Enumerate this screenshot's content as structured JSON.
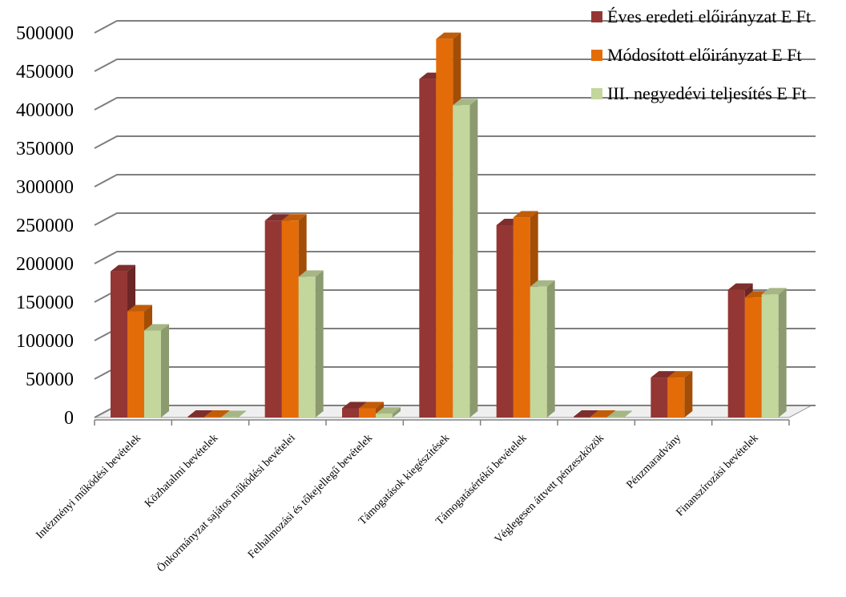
{
  "chart_data": {
    "type": "bar",
    "title": "",
    "xlabel": "",
    "ylabel": "",
    "ylim": [
      0,
      500000
    ],
    "yticks": [
      0,
      50000,
      100000,
      150000,
      200000,
      250000,
      300000,
      350000,
      400000,
      450000,
      500000
    ],
    "grid": true,
    "legend_position": "top-right",
    "categories": [
      "Intézményi működési bevételek",
      "Közhatalmi bevételek",
      "Önkormányzat sajátos működési bevételei",
      "Felhalmozási és tőkejellegű bevételek",
      "Támogatások kiegészítések",
      "Támogatásértékű bevételek",
      "Véglegesen áttvett pénzeszközök",
      "Pénzmaradvány",
      "Finanszírozási bevételek"
    ],
    "series": [
      {
        "name": "Éves eredeti előirányzat E Ft",
        "color": "#943634",
        "values": [
          190000,
          1000,
          256000,
          12000,
          440000,
          250000,
          1000,
          52000,
          166000
        ]
      },
      {
        "name": "Módosított előirányzat E Ft",
        "color": "#e36c09",
        "values": [
          138000,
          1000,
          256000,
          12000,
          492000,
          260000,
          1000,
          52000,
          156000
        ]
      },
      {
        "name": "III. negyedévi teljesítés E Ft",
        "color": "#c3d69b",
        "values": [
          113000,
          500,
          183000,
          5000,
          406000,
          170000,
          500,
          0,
          160000
        ]
      }
    ]
  }
}
